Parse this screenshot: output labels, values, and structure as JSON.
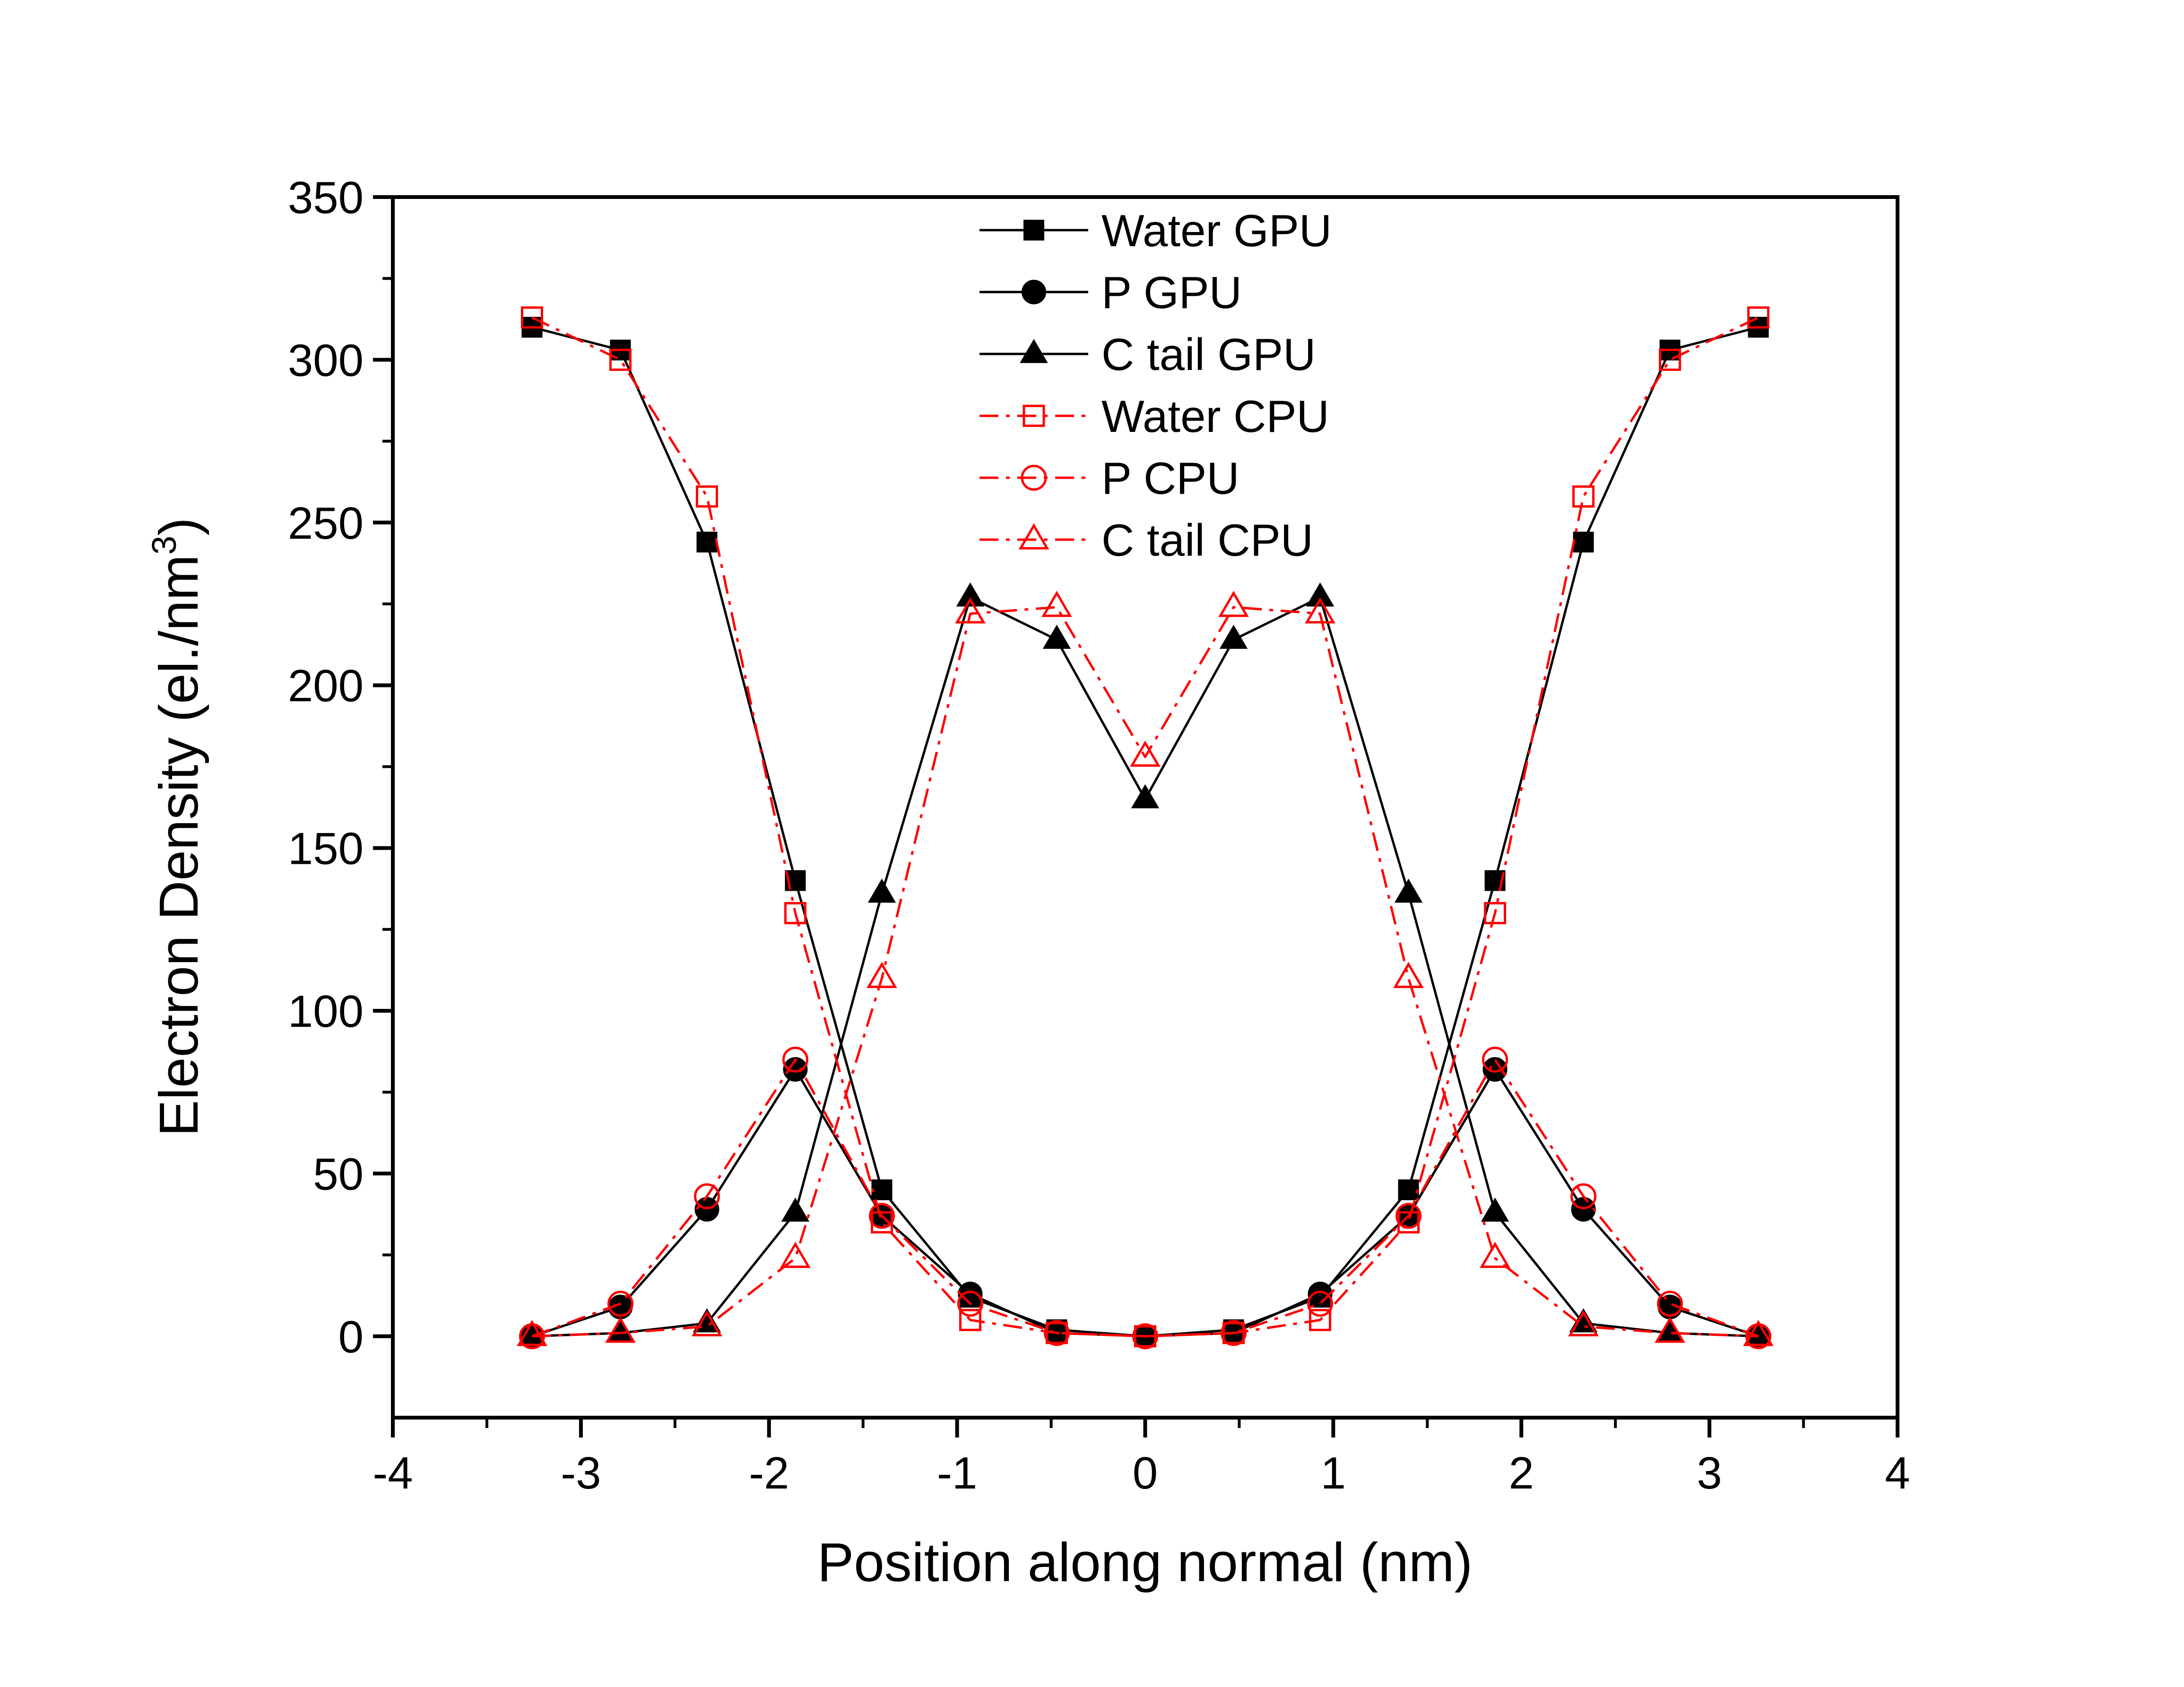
{
  "chart_data": {
    "type": "line",
    "title": "",
    "xlabel": "Position along normal (nm)",
    "ylabel": "Electron Density (el./nm",
    "ylabel_superscript": "3",
    "ylabel_suffix": ")",
    "xlim": [
      -4,
      4
    ],
    "ylim": [
      -25,
      350
    ],
    "xticks": [
      -4,
      -3,
      -2,
      -1,
      0,
      1,
      2,
      3,
      4
    ],
    "xtick_labels": [
      "-4",
      "-3",
      "-2",
      "-1",
      "0",
      "1",
      "2",
      "3",
      "4"
    ],
    "yticks": [
      0,
      50,
      100,
      150,
      200,
      250,
      300,
      350
    ],
    "ytick_labels": [
      "0",
      "50",
      "100",
      "150",
      "200",
      "250",
      "300",
      "350"
    ],
    "legend_position": "top-center",
    "x": [
      -3.26,
      -2.79,
      -2.33,
      -1.86,
      -1.4,
      -0.93,
      -0.47,
      0,
      0.47,
      0.93,
      1.4,
      1.86,
      2.33,
      2.79,
      3.26
    ],
    "series": [
      {
        "name": "Water GPU",
        "color": "#000000",
        "line": "solid",
        "marker": "square-filled",
        "values": [
          310,
          303,
          244,
          140,
          45,
          12,
          2,
          0,
          2,
          12,
          45,
          140,
          244,
          303,
          310
        ]
      },
      {
        "name": "P GPU",
        "color": "#000000",
        "line": "solid",
        "marker": "circle-filled",
        "values": [
          0,
          9,
          39,
          82,
          37,
          13,
          1,
          0,
          1,
          13,
          37,
          82,
          39,
          9,
          0
        ]
      },
      {
        "name": "C tail GPU",
        "color": "#000000",
        "line": "solid",
        "marker": "triangle-filled",
        "values": [
          0,
          1,
          4,
          38,
          136,
          227,
          214,
          165,
          214,
          227,
          136,
          38,
          4,
          1,
          0
        ]
      },
      {
        "name": "Water CPU",
        "color": "#ff0000",
        "line": "dashdot",
        "marker": "square-open",
        "values": [
          313,
          300,
          258,
          130,
          35,
          5,
          1,
          0,
          1,
          5,
          35,
          130,
          258,
          300,
          313
        ]
      },
      {
        "name": "P CPU",
        "color": "#ff0000",
        "line": "dashdot",
        "marker": "circle-open",
        "values": [
          0,
          10,
          43,
          85,
          37,
          10,
          1,
          0,
          1,
          10,
          37,
          85,
          43,
          10,
          0
        ]
      },
      {
        "name": "C tail CPU",
        "color": "#ff0000",
        "line": "dashdot",
        "marker": "triangle-open",
        "values": [
          0,
          1,
          3,
          24,
          110,
          222,
          224,
          178,
          224,
          222,
          110,
          24,
          3,
          1,
          0
        ]
      }
    ]
  }
}
